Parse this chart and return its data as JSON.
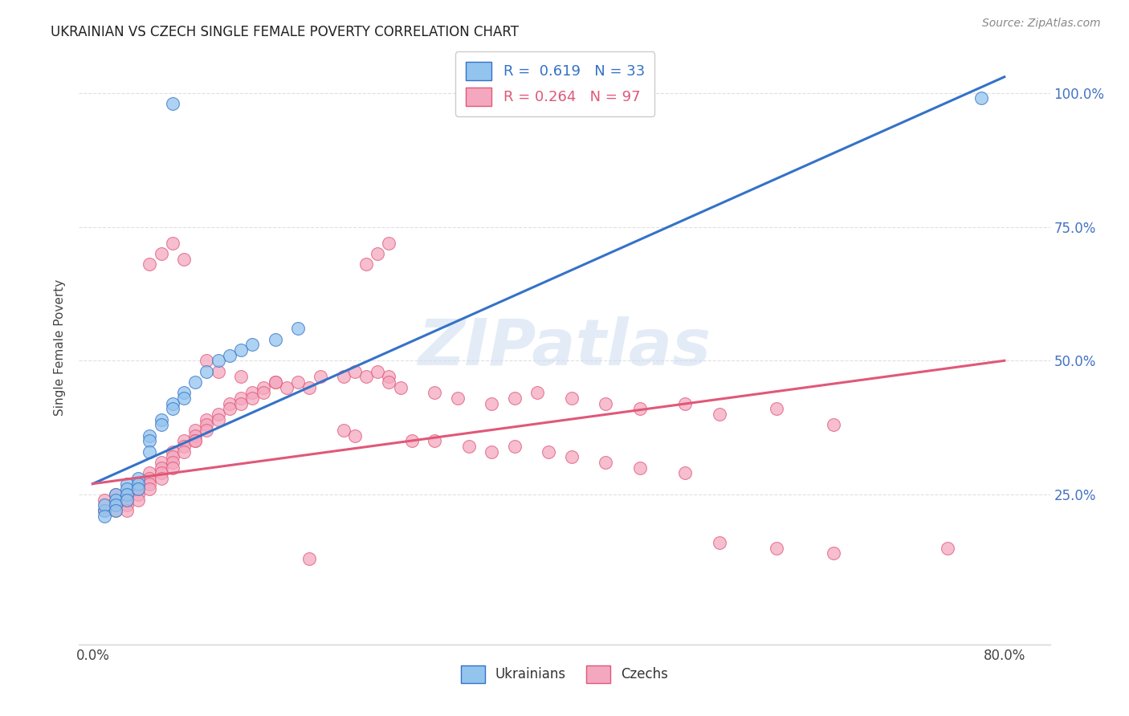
{
  "title": "UKRAINIAN VS CZECH SINGLE FEMALE POVERTY CORRELATION CHART",
  "source": "Source: ZipAtlas.com",
  "ylabel": "Single Female Poverty",
  "xlim": [
    0.0,
    0.8
  ],
  "ylim": [
    0.0,
    1.05
  ],
  "blue_color": "#93C4EE",
  "pink_color": "#F4A8C0",
  "blue_line_color": "#3472C8",
  "pink_line_color": "#E05878",
  "blue_R": 0.619,
  "blue_N": 33,
  "pink_R": 0.264,
  "pink_N": 97,
  "watermark": "ZIPatlas",
  "background_color": "#ffffff",
  "grid_color": "#e0e0e0",
  "blue_trend": [
    0.0,
    0.27,
    0.8,
    1.03
  ],
  "pink_trend": [
    0.0,
    0.27,
    0.8,
    0.5
  ],
  "blue_scatter_x": [
    0.07,
    0.78,
    0.01,
    0.01,
    0.01,
    0.02,
    0.02,
    0.02,
    0.02,
    0.03,
    0.03,
    0.03,
    0.03,
    0.04,
    0.04,
    0.04,
    0.05,
    0.05,
    0.05,
    0.06,
    0.06,
    0.07,
    0.07,
    0.08,
    0.08,
    0.09,
    0.1,
    0.11,
    0.12,
    0.13,
    0.14,
    0.16,
    0.18
  ],
  "blue_scatter_y": [
    0.98,
    0.99,
    0.22,
    0.23,
    0.21,
    0.25,
    0.24,
    0.23,
    0.22,
    0.27,
    0.26,
    0.25,
    0.24,
    0.28,
    0.27,
    0.26,
    0.36,
    0.35,
    0.33,
    0.39,
    0.38,
    0.42,
    0.41,
    0.44,
    0.43,
    0.46,
    0.48,
    0.5,
    0.51,
    0.52,
    0.53,
    0.54,
    0.56
  ],
  "pink_scatter_x": [
    0.01,
    0.01,
    0.02,
    0.02,
    0.02,
    0.03,
    0.03,
    0.03,
    0.03,
    0.04,
    0.04,
    0.04,
    0.04,
    0.05,
    0.05,
    0.05,
    0.05,
    0.06,
    0.06,
    0.06,
    0.06,
    0.07,
    0.07,
    0.07,
    0.07,
    0.08,
    0.08,
    0.08,
    0.09,
    0.09,
    0.09,
    0.1,
    0.1,
    0.1,
    0.11,
    0.11,
    0.12,
    0.12,
    0.13,
    0.13,
    0.14,
    0.14,
    0.15,
    0.15,
    0.16,
    0.17,
    0.18,
    0.19,
    0.2,
    0.22,
    0.23,
    0.24,
    0.25,
    0.26,
    0.26,
    0.27,
    0.3,
    0.32,
    0.35,
    0.37,
    0.39,
    0.42,
    0.45,
    0.48,
    0.52,
    0.55,
    0.6,
    0.65,
    0.75,
    0.05,
    0.06,
    0.07,
    0.08,
    0.09,
    0.1,
    0.11,
    0.13,
    0.16,
    0.19,
    0.22,
    0.23,
    0.24,
    0.25,
    0.26,
    0.28,
    0.3,
    0.33,
    0.35,
    0.37,
    0.4,
    0.42,
    0.45,
    0.48,
    0.52,
    0.55,
    0.6,
    0.65
  ],
  "pink_scatter_y": [
    0.24,
    0.22,
    0.25,
    0.23,
    0.22,
    0.25,
    0.24,
    0.23,
    0.22,
    0.27,
    0.26,
    0.25,
    0.24,
    0.29,
    0.28,
    0.27,
    0.26,
    0.31,
    0.3,
    0.29,
    0.28,
    0.33,
    0.32,
    0.31,
    0.3,
    0.35,
    0.34,
    0.33,
    0.37,
    0.36,
    0.35,
    0.39,
    0.38,
    0.37,
    0.4,
    0.39,
    0.42,
    0.41,
    0.43,
    0.42,
    0.44,
    0.43,
    0.45,
    0.44,
    0.46,
    0.45,
    0.46,
    0.45,
    0.47,
    0.47,
    0.48,
    0.47,
    0.48,
    0.47,
    0.46,
    0.45,
    0.44,
    0.43,
    0.42,
    0.43,
    0.44,
    0.43,
    0.42,
    0.41,
    0.42,
    0.4,
    0.41,
    0.38,
    0.15,
    0.68,
    0.7,
    0.72,
    0.69,
    0.35,
    0.5,
    0.48,
    0.47,
    0.46,
    0.13,
    0.37,
    0.36,
    0.68,
    0.7,
    0.72,
    0.35,
    0.35,
    0.34,
    0.33,
    0.34,
    0.33,
    0.32,
    0.31,
    0.3,
    0.29,
    0.16,
    0.15,
    0.14
  ]
}
